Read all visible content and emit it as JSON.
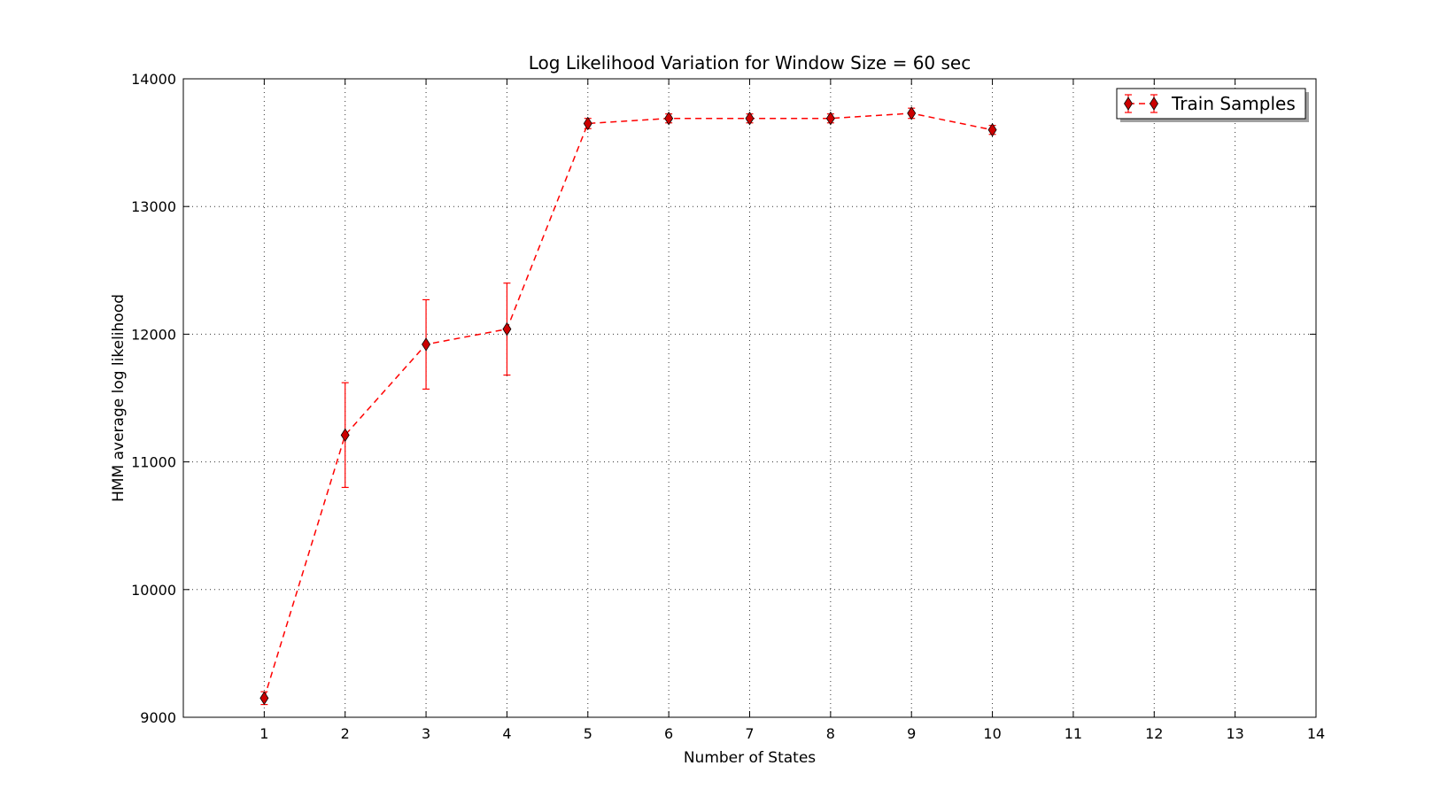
{
  "chart_data": {
    "type": "line",
    "title": "Log Likelihood Variation for Window Size = 60 sec",
    "xlabel": "Number of States",
    "ylabel": "HMM average log likelihood",
    "xlim": [
      0,
      14
    ],
    "ylim": [
      9000,
      14000
    ],
    "x_ticks": [
      1,
      2,
      3,
      4,
      5,
      6,
      7,
      8,
      9,
      10,
      11,
      12,
      13,
      14
    ],
    "y_ticks": [
      9000,
      10000,
      11000,
      12000,
      13000,
      14000
    ],
    "grid": true,
    "grid_style": "dotted",
    "legend_position": "top-right",
    "series": [
      {
        "name": "Train Samples",
        "color": "#ff0000",
        "marker_color": "#cc0000",
        "line_style": "dashed",
        "marker": "diamond",
        "x": [
          1,
          2,
          3,
          4,
          5,
          6,
          7,
          8,
          9,
          10
        ],
        "values": [
          9150,
          11210,
          11920,
          12040,
          13650,
          13690,
          13690,
          13690,
          13730,
          13600
        ],
        "errors": [
          50,
          410,
          350,
          360,
          40,
          35,
          35,
          35,
          40,
          35
        ]
      }
    ]
  }
}
